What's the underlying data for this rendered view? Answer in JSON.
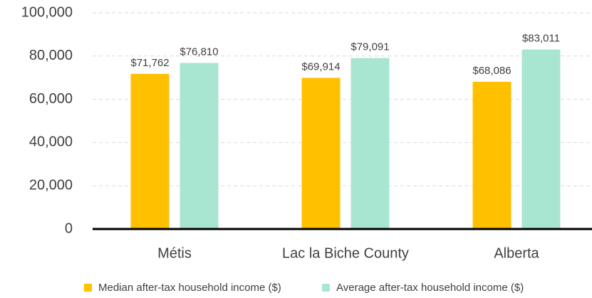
{
  "chart_data": {
    "type": "bar",
    "categories": [
      "Métis",
      "Lac la Biche County",
      "Alberta"
    ],
    "series": [
      {
        "name": "Median after-tax household income ($)",
        "color": "#FFC000",
        "values": [
          71762,
          69914,
          68086
        ],
        "value_labels": [
          "$71,762",
          "$69,914",
          "$68,086"
        ]
      },
      {
        "name": "Average after-tax household income ($)",
        "color": "#A8E6D2",
        "values": [
          76810,
          79091,
          83011
        ],
        "value_labels": [
          "$76,810",
          "$79,091",
          "$83,011"
        ]
      }
    ],
    "ylim": [
      0,
      100000
    ],
    "yticks": [
      0,
      {
        "value": 20000,
        "label": "20,000"
      },
      {
        "value": 40000,
        "label": "40,000"
      },
      {
        "value": 60000,
        "label": "60,000"
      },
      {
        "value": 80000,
        "label": "80,000"
      },
      {
        "value": 100000,
        "label": "100,000"
      }
    ],
    "grid": true,
    "legend": "bottom"
  }
}
